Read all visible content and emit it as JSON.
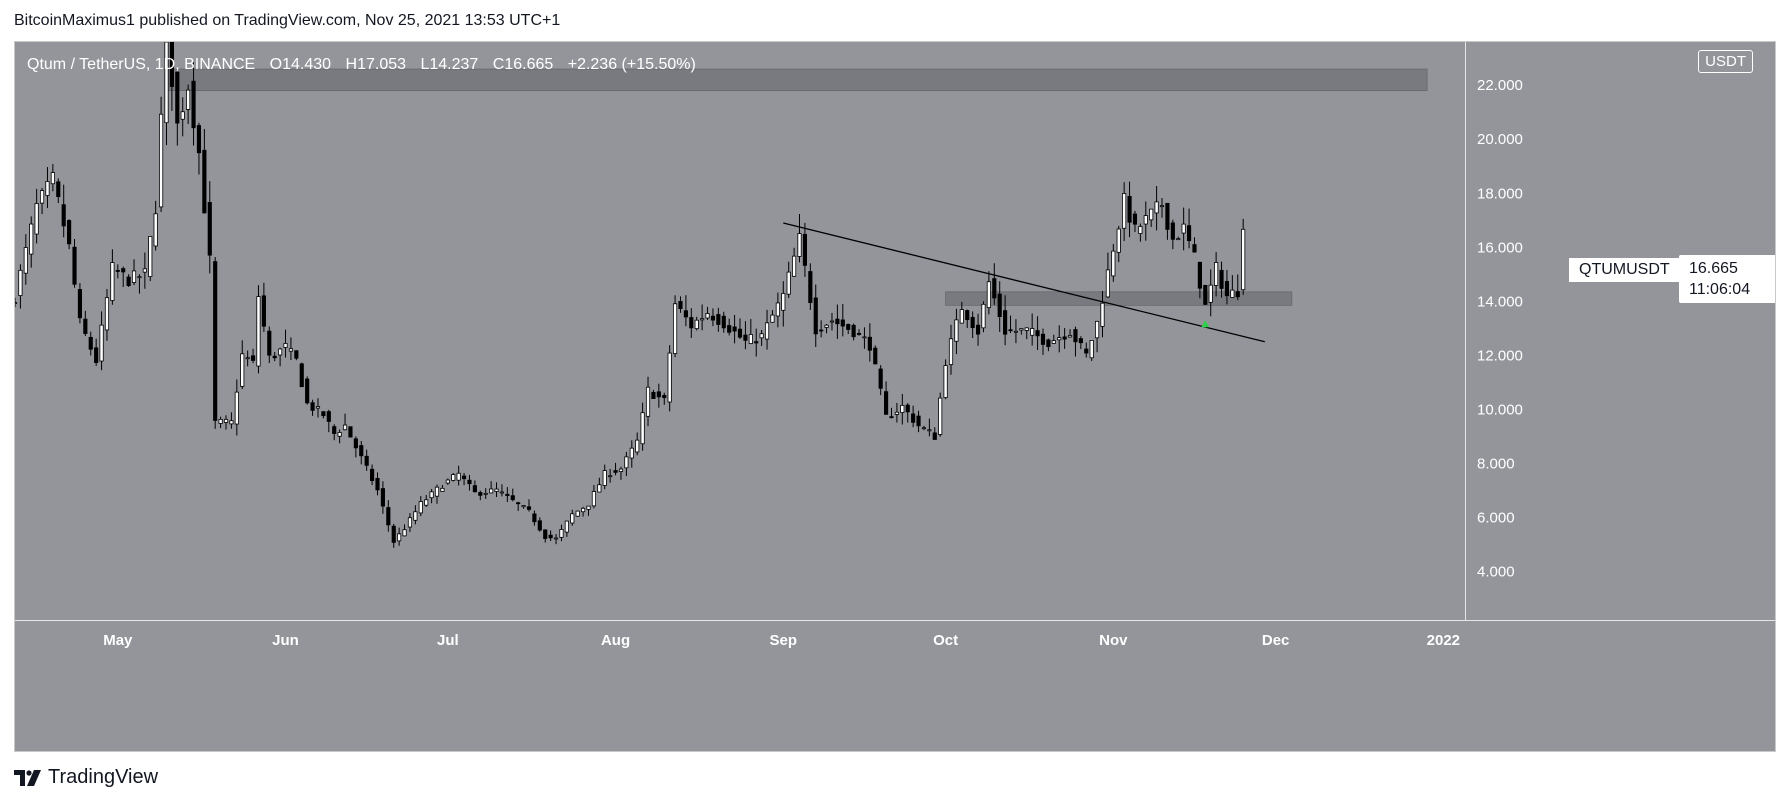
{
  "header": "BitcoinMaximus1 published on TradingView.com, Nov 25, 2021 13:53 UTC+1",
  "brand": {
    "name": "TradingView",
    "logo_icon": "tradingview-logo-icon"
  },
  "legend": {
    "symbol": "Qtum / TetherUS, 1D, BINANCE",
    "open_label": "O",
    "open": "14.430",
    "high_label": "H",
    "high": "17.053",
    "low_label": "L",
    "low": "14.237",
    "close_label": "C",
    "close": "16.665",
    "change": "+2.236 (+15.50%)"
  },
  "currency": "USDT",
  "price_label": "QTUMUSDT",
  "last_price": "16.665",
  "countdown": "11:06:04",
  "colors": {
    "background": "#93959b",
    "bull_body": "#ffffff",
    "bear_body": "#000000",
    "wick": "#000000",
    "zone": "#6f7177",
    "trendline": "#000000",
    "marker": "#2fd14b",
    "axis_text": "#ffffff"
  },
  "chart_data": {
    "type": "candlestick",
    "title": "Qtum / TetherUS, 1D, BINANCE",
    "ylim": [
      2.2,
      23.6
    ],
    "y_ticks": [
      "4.000",
      "6.000",
      "8.000",
      "10.000",
      "12.000",
      "14.000",
      "16.000",
      "18.000",
      "20.000",
      "22.000"
    ],
    "x_ticks": [
      {
        "label": "May",
        "date": "2021-05-01"
      },
      {
        "label": "Jun",
        "date": "2021-06-01"
      },
      {
        "label": "Jul",
        "date": "2021-07-01"
      },
      {
        "label": "Aug",
        "date": "2021-08-01"
      },
      {
        "label": "Sep",
        "date": "2021-09-01"
      },
      {
        "label": "Oct",
        "date": "2021-10-01"
      },
      {
        "label": "Nov",
        "date": "2021-11-01"
      },
      {
        "label": "Dec",
        "date": "2021-12-01"
      },
      {
        "label": "2022",
        "date": "2022-01-01"
      }
    ],
    "x_range": [
      "2021-04-12",
      "2022-01-05"
    ],
    "grid": false,
    "price_path": [
      [
        "2021-04-12",
        14.2
      ],
      [
        "2021-04-16",
        17.5
      ],
      [
        "2021-04-19",
        18.5
      ],
      [
        "2021-04-22",
        16.0
      ],
      [
        "2021-04-24",
        13.2
      ],
      [
        "2021-04-27",
        11.8
      ],
      [
        "2021-04-30",
        15.2
      ],
      [
        "2021-05-03",
        14.8
      ],
      [
        "2021-05-06",
        15.0
      ],
      [
        "2021-05-08",
        17.5
      ],
      [
        "2021-05-10",
        24.0
      ],
      [
        "2021-05-12",
        20.5
      ],
      [
        "2021-05-14",
        22.0
      ],
      [
        "2021-05-16",
        19.5
      ],
      [
        "2021-05-18",
        15.5
      ],
      [
        "2021-05-19",
        9.5
      ],
      [
        "2021-05-22",
        9.5
      ],
      [
        "2021-05-24",
        12.0
      ],
      [
        "2021-05-26",
        11.7
      ],
      [
        "2021-05-27",
        14.2
      ],
      [
        "2021-05-29",
        11.9
      ],
      [
        "2021-06-01",
        12.3
      ],
      [
        "2021-06-03",
        11.8
      ],
      [
        "2021-06-05",
        10.2
      ],
      [
        "2021-06-08",
        9.8
      ],
      [
        "2021-06-10",
        9.1
      ],
      [
        "2021-06-12",
        9.4
      ],
      [
        "2021-06-15",
        8.2
      ],
      [
        "2021-06-18",
        7.0
      ],
      [
        "2021-06-21",
        5.1
      ],
      [
        "2021-06-23",
        5.6
      ],
      [
        "2021-06-26",
        6.5
      ],
      [
        "2021-06-30",
        7.2
      ],
      [
        "2021-07-03",
        7.6
      ],
      [
        "2021-07-06",
        6.9
      ],
      [
        "2021-07-10",
        7.0
      ],
      [
        "2021-07-13",
        6.6
      ],
      [
        "2021-07-16",
        6.2
      ],
      [
        "2021-07-19",
        5.3
      ],
      [
        "2021-07-21",
        5.2
      ],
      [
        "2021-07-24",
        6.1
      ],
      [
        "2021-07-27",
        6.5
      ],
      [
        "2021-07-30",
        7.6
      ],
      [
        "2021-08-02",
        7.8
      ],
      [
        "2021-08-05",
        8.8
      ],
      [
        "2021-08-07",
        10.7
      ],
      [
        "2021-08-10",
        10.3
      ],
      [
        "2021-08-12",
        13.9
      ],
      [
        "2021-08-15",
        13.1
      ],
      [
        "2021-08-18",
        13.6
      ],
      [
        "2021-08-21",
        13.2
      ],
      [
        "2021-08-25",
        12.5
      ],
      [
        "2021-08-28",
        12.7
      ],
      [
        "2021-09-01",
        14.2
      ],
      [
        "2021-09-04",
        16.3
      ],
      [
        "2021-09-07",
        13.0
      ],
      [
        "2021-09-10",
        13.3
      ],
      [
        "2021-09-14",
        12.9
      ],
      [
        "2021-09-17",
        12.4
      ],
      [
        "2021-09-20",
        9.7
      ],
      [
        "2021-09-23",
        10.1
      ],
      [
        "2021-09-26",
        9.4
      ],
      [
        "2021-09-29",
        9.0
      ],
      [
        "2021-10-01",
        11.8
      ],
      [
        "2021-10-04",
        13.8
      ],
      [
        "2021-10-07",
        12.9
      ],
      [
        "2021-10-09",
        14.7
      ],
      [
        "2021-10-12",
        12.9
      ],
      [
        "2021-10-16",
        12.9
      ],
      [
        "2021-10-20",
        12.5
      ],
      [
        "2021-10-24",
        12.9
      ],
      [
        "2021-10-27",
        12.0
      ],
      [
        "2021-10-29",
        13.2
      ],
      [
        "2021-11-01",
        16.0
      ],
      [
        "2021-11-03",
        17.7
      ],
      [
        "2021-11-05",
        16.6
      ],
      [
        "2021-11-08",
        17.2
      ],
      [
        "2021-11-10",
        17.6
      ],
      [
        "2021-11-12",
        16.3
      ],
      [
        "2021-11-14",
        16.7
      ],
      [
        "2021-11-16",
        15.6
      ],
      [
        "2021-11-18",
        13.8
      ],
      [
        "2021-11-20",
        15.2
      ],
      [
        "2021-11-22",
        14.2
      ],
      [
        "2021-11-24",
        14.4
      ],
      [
        "2021-11-25",
        16.665
      ]
    ],
    "zones": [
      {
        "x_start": "2021-05-10",
        "x_end": "2021-12-29",
        "y_low": 21.8,
        "y_high": 22.6
      },
      {
        "x_start": "2021-10-01",
        "x_end": "2021-12-04",
        "y_low": 13.85,
        "y_high": 14.35
      }
    ],
    "trendline": {
      "x1": "2021-09-01",
      "y1": 16.9,
      "x2": "2021-11-29",
      "y2": 12.5
    },
    "marker": {
      "date": "2021-11-18",
      "y": 13.15
    }
  }
}
